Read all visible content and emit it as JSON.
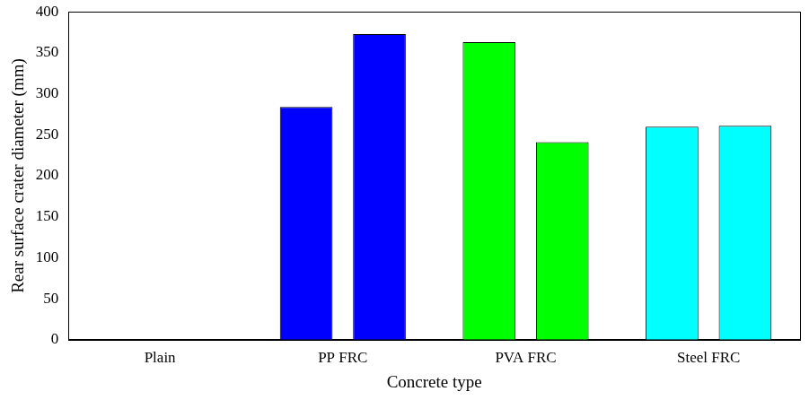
{
  "chart_data": {
    "type": "bar",
    "x_label": "Concrete type",
    "y_label": "Rear surface crater diameter (mm)",
    "categories": [
      "Plain",
      "PP FRC",
      "PVA FRC",
      "Steel FRC"
    ],
    "colors": [
      null,
      "#0000ff",
      "#00ff00",
      "#00ffff"
    ],
    "series": [
      {
        "values": [
          null,
          284,
          363,
          260
        ]
      },
      {
        "values": [
          null,
          373,
          241,
          261
        ]
      }
    ],
    "ylim": [
      0,
      400
    ],
    "yticks": [
      0,
      50,
      100,
      150,
      200,
      250,
      300,
      350,
      400
    ],
    "grid": false
  }
}
